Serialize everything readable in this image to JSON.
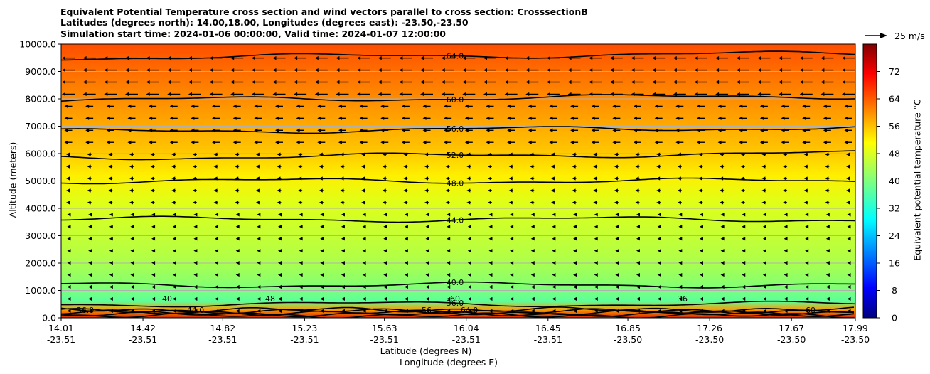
{
  "chart_data": {
    "type": "contour",
    "title_lines": [
      "Equivalent Potential Temperature cross section and wind vectors parallel to cross section: CrosssectionB",
      "Latitudes (degrees north): 14.00,18.00, Longitudes (degrees east): -23.50,-23.50",
      "Simulation start time: 2024-01-06 00:00:00, Valid time: 2024-01-07 12:00:00"
    ],
    "ylabel": "Altitude (meters)",
    "xlabel_lat": "Latitude (degrees N)",
    "xlabel_lon": "Longitude (degrees E)",
    "ylim": [
      0,
      10000
    ],
    "yticks": [
      "0.0",
      "1000.0",
      "2000.0",
      "3000.0",
      "4000.0",
      "5000.0",
      "6000.0",
      "7000.0",
      "8000.0",
      "9000.0",
      "10000.0"
    ],
    "xticks": [
      {
        "lat": "14.01",
        "lon": "-23.51"
      },
      {
        "lat": "14.42",
        "lon": "-23.51"
      },
      {
        "lat": "14.82",
        "lon": "-23.51"
      },
      {
        "lat": "15.23",
        "lon": "-23.51"
      },
      {
        "lat": "15.63",
        "lon": "-23.51"
      },
      {
        "lat": "16.04",
        "lon": "-23.51"
      },
      {
        "lat": "16.45",
        "lon": "-23.51"
      },
      {
        "lat": "16.85",
        "lon": "-23.50"
      },
      {
        "lat": "17.26",
        "lon": "-23.50"
      },
      {
        "lat": "17.67",
        "lon": "-23.50"
      },
      {
        "lat": "17.99",
        "lon": "-23.50"
      }
    ],
    "grid": "horizontal",
    "colorbar": {
      "label": "Equivalent potential temperature $^\\circ$C",
      "min": 0,
      "max": 80,
      "ticks": [
        "0",
        "8",
        "16",
        "24",
        "32",
        "40",
        "48",
        "56",
        "64",
        "72"
      ],
      "colormap": "jet"
    },
    "reference_vector": "25 m/s",
    "contour_lines": [
      {
        "label": "64.0",
        "altitude_m": 9500
      },
      {
        "label": "60.0",
        "altitude_m": 7950
      },
      {
        "label": "56.0",
        "altitude_m": 6800
      },
      {
        "label": "52.0",
        "altitude_m": 5850
      },
      {
        "label": "48.0",
        "altitude_m": 5000
      },
      {
        "label": "44.0",
        "altitude_m": 3600
      },
      {
        "label": "40.0",
        "altitude_m": 1200
      },
      {
        "label": "36.0",
        "altitude_m": 500
      }
    ],
    "surface_labels": [
      "36.0",
      "40",
      "44.0",
      "48",
      "56",
      "60",
      "64.0",
      "36",
      "60"
    ]
  }
}
